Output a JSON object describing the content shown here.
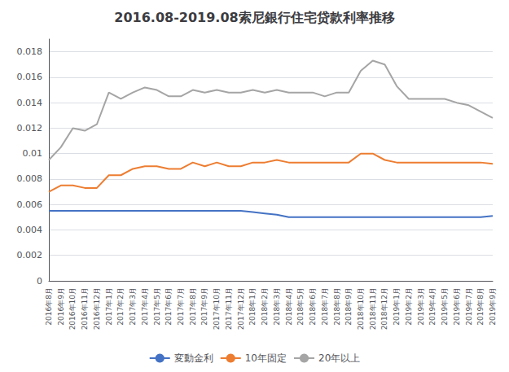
{
  "chart_data": {
    "type": "line",
    "title": "2016.08-2019.08索尼銀行住宅贷款利率推移",
    "categories": [
      "2016年8月",
      "2016年9月",
      "2016年10月",
      "2016年11月",
      "2016年12月",
      "2017年1月",
      "2017年2月",
      "2017年3月",
      "2017年4月",
      "2017年5月",
      "2017年6月",
      "2017年7月",
      "2017年8月",
      "2017年9月",
      "2017年10月",
      "2017年11月",
      "2017年12月",
      "2018年1月",
      "2018年2月",
      "2018年3月",
      "2018年4月",
      "2018年5月",
      "2018年6月",
      "2018年7月",
      "2018年8月",
      "2018年9月",
      "2018年10月",
      "2018年11月",
      "2018年12月",
      "2019年1月",
      "2019年2月",
      "2019年3月",
      "2019年4月",
      "2019年5月",
      "2019年6月",
      "2019年7月",
      "2019年8月",
      "2019年9月"
    ],
    "series": [
      {
        "name": "変動金利",
        "color": "#4472C4",
        "values": [
          0.0055,
          0.0055,
          0.0055,
          0.0055,
          0.0055,
          0.0055,
          0.0055,
          0.0055,
          0.0055,
          0.0055,
          0.0055,
          0.0055,
          0.0055,
          0.0055,
          0.0055,
          0.0055,
          0.0055,
          0.0054,
          0.0053,
          0.0052,
          0.005,
          0.005,
          0.005,
          0.005,
          0.005,
          0.005,
          0.005,
          0.005,
          0.005,
          0.005,
          0.005,
          0.005,
          0.005,
          0.005,
          0.005,
          0.005,
          0.005,
          0.0051
        ]
      },
      {
        "name": "10年固定",
        "color": "#ED7D31",
        "values": [
          0.007,
          0.0075,
          0.0075,
          0.0073,
          0.0073,
          0.0083,
          0.0083,
          0.0088,
          0.009,
          0.009,
          0.0088,
          0.0088,
          0.0093,
          0.009,
          0.0093,
          0.009,
          0.009,
          0.0093,
          0.0093,
          0.0095,
          0.0093,
          0.0093,
          0.0093,
          0.0093,
          0.0093,
          0.0093,
          0.01,
          0.01,
          0.0095,
          0.0093,
          0.0093,
          0.0093,
          0.0093,
          0.0093,
          0.0093,
          0.0093,
          0.0093,
          0.0092
        ]
      },
      {
        "name": "20年以上",
        "color": "#A5A5A5",
        "values": [
          0.0095,
          0.0105,
          0.012,
          0.0118,
          0.0123,
          0.0148,
          0.0143,
          0.0148,
          0.0152,
          0.015,
          0.0145,
          0.0145,
          0.015,
          0.0148,
          0.015,
          0.0148,
          0.0148,
          0.015,
          0.0148,
          0.015,
          0.0148,
          0.0148,
          0.0148,
          0.0145,
          0.0148,
          0.0148,
          0.0165,
          0.0173,
          0.017,
          0.0153,
          0.0143,
          0.0143,
          0.0143,
          0.0143,
          0.014,
          0.0138,
          0.0133,
          0.0128
        ]
      }
    ],
    "ylim": [
      0,
      0.019
    ],
    "yticks": [
      0,
      0.002,
      0.004,
      0.006,
      0.008,
      0.01,
      0.012,
      0.014,
      0.016,
      0.018
    ],
    "grid": true,
    "legend": "bottom"
  }
}
